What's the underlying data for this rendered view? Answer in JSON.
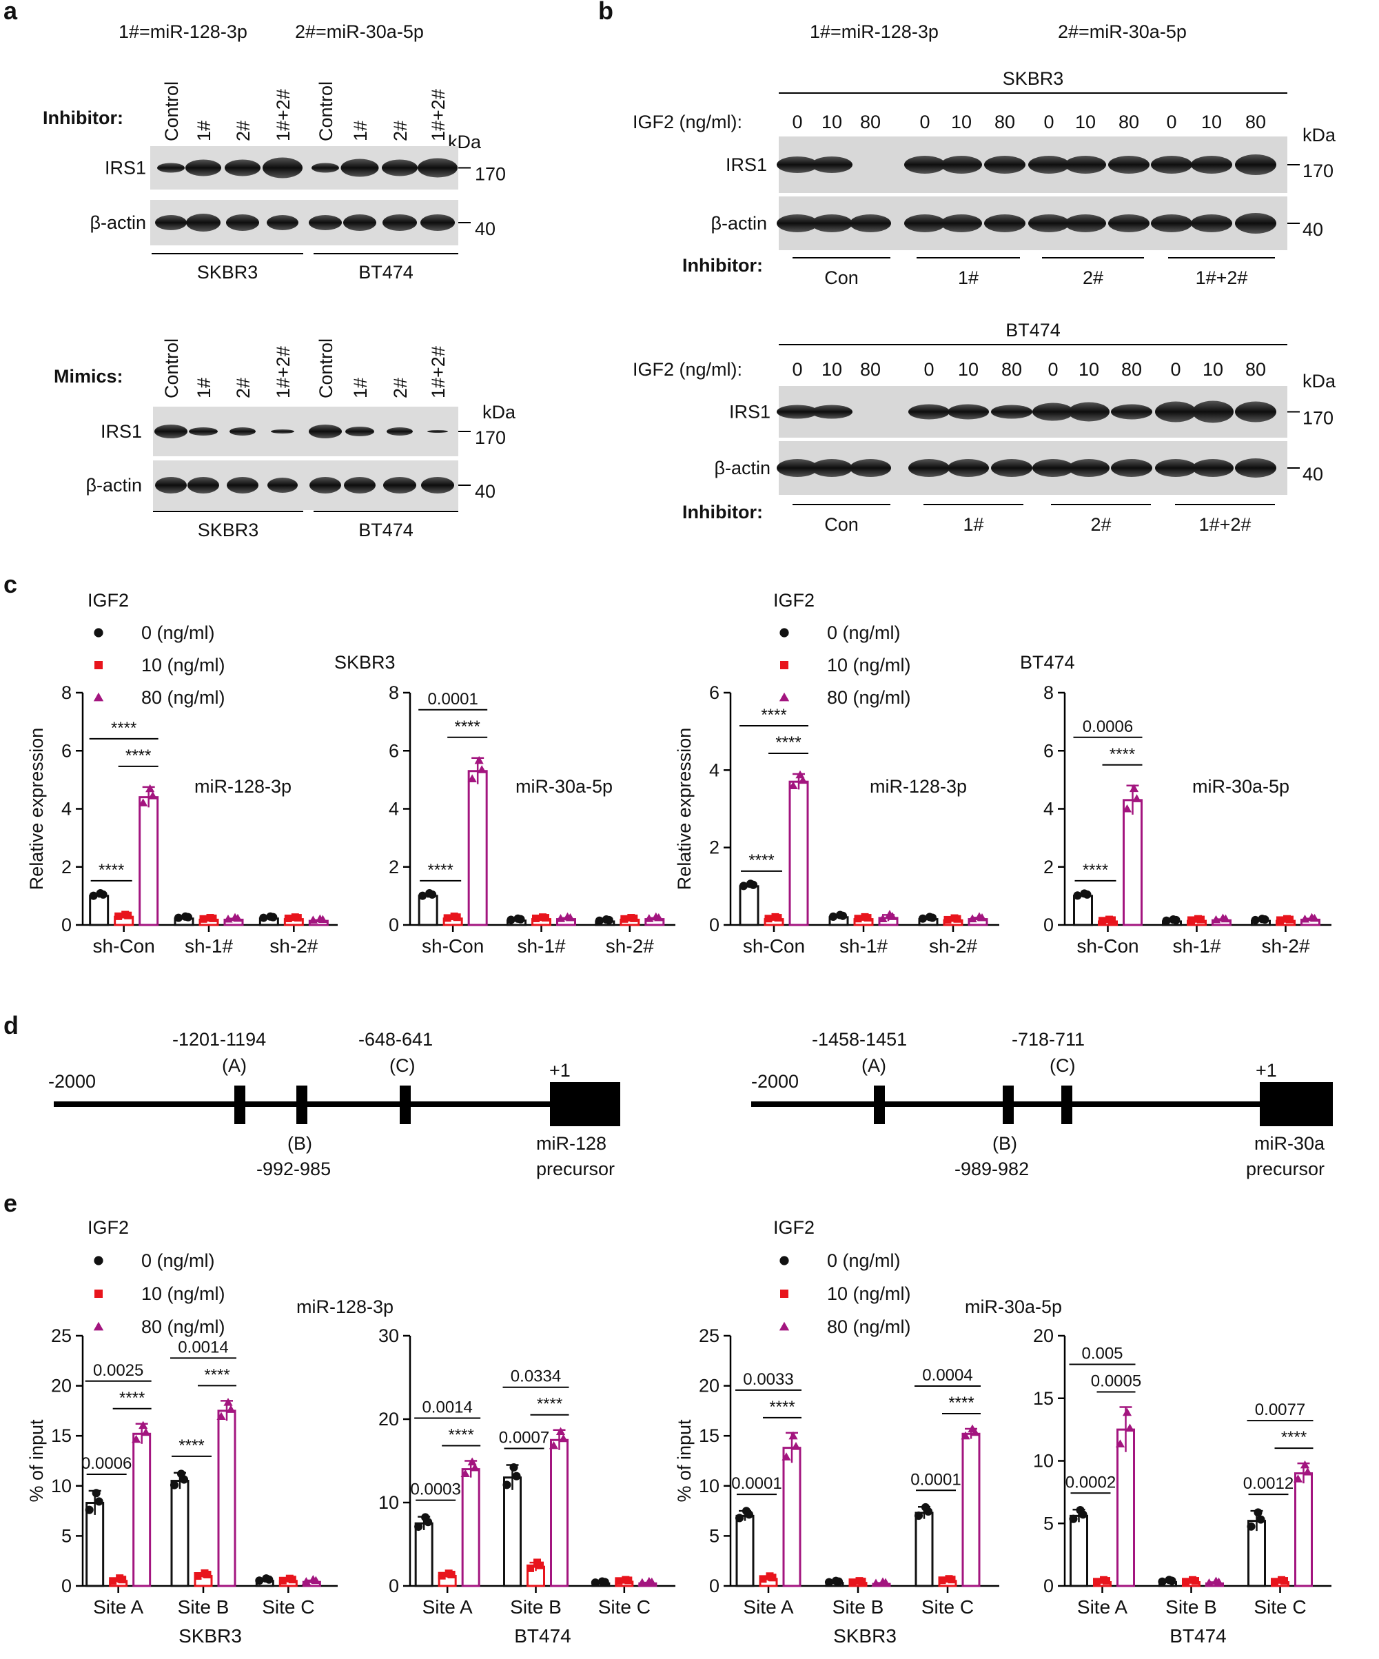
{
  "panel_a": {
    "letter": "a",
    "legend_1": "1#=miR-128-3p",
    "legend_2": "2#=miR-30a-5p",
    "kda": "kDa",
    "top": {
      "row_label": "Inhibitor:",
      "lanes": [
        "Control",
        "1#",
        "2#",
        "1#+2#",
        "Control",
        "1#",
        "2#",
        "1#+2#"
      ],
      "blots": [
        "IRS1",
        "β-actin"
      ],
      "mw": [
        "170",
        "40"
      ],
      "cells": [
        "SKBR3",
        "BT474"
      ]
    },
    "bottom": {
      "row_label": "Mimics:",
      "lanes": [
        "Control",
        "1#",
        "2#",
        "1#+2#",
        "Control",
        "1#",
        "2#",
        "1#+2#"
      ],
      "blots": [
        "IRS1",
        "β-actin"
      ],
      "mw": [
        "170",
        "40"
      ],
      "cells": [
        "SKBR3",
        "BT474"
      ]
    }
  },
  "panel_b": {
    "letter": "b",
    "legend_1": "1#=miR-128-3p",
    "legend_2": "2#=miR-30a-5p",
    "kda": "kDa",
    "igf2_label": "IGF2 (ng/ml):",
    "doses": [
      "0",
      "10",
      "80",
      "0",
      "10",
      "80",
      "0",
      "10",
      "80",
      "0",
      "10",
      "80"
    ],
    "inhibitor_label": "Inhibitor:",
    "groups": [
      "Con",
      "1#",
      "2#",
      "1#+2#"
    ],
    "blots": [
      "IRS1",
      "β-actin"
    ],
    "mw": [
      "170",
      "40"
    ],
    "top_cell": "SKBR3",
    "bottom_cell": "BT474"
  },
  "panel_c": {
    "letter": "c",
    "legend_title": "IGF2",
    "legend": [
      "0 (ng/ml)",
      "10 (ng/ml)",
      "80 (ng/ml)"
    ],
    "left_cell": "SKBR3",
    "right_cell": "BT474",
    "colors": {
      "s0": "#111111",
      "s10": "#e8141c",
      "s80": "#a3157f"
    }
  },
  "panel_d": {
    "letter": "d",
    "left": {
      "start": "-2000",
      "a_label": "-1201-1194",
      "a": "(A)",
      "b": "(B)",
      "b_label": "-992-985",
      "c_label": "-648-641",
      "c": "(C)",
      "plus1": "+1",
      "precursor_1": "miR-128",
      "precursor_2": "precursor"
    },
    "right": {
      "start": "-2000",
      "a_label": "-1458-1451",
      "a": "(A)",
      "b": "(B)",
      "b_label": "-989-982",
      "c_label": "-718-711",
      "c": "(C)",
      "plus1": "+1",
      "precursor_1": "miR-30a",
      "precursor_2": "precursor"
    }
  },
  "panel_e": {
    "letter": "e",
    "legend_title": "IGF2",
    "legend": [
      "0 (ng/ml)",
      "10 (ng/ml)",
      "80 (ng/ml)"
    ],
    "left_mirna": "miR-128-3p",
    "right_mirna": "miR-30a-5p"
  },
  "chart_data": [
    {
      "type": "bar",
      "id": "c1",
      "ylabel": "Relative expression",
      "ylim": [
        0,
        8
      ],
      "yticks": [
        "0",
        "2",
        "4",
        "6",
        "8"
      ],
      "categories": [
        "sh-Con",
        "sh-1#",
        "sh-2#"
      ],
      "series": [
        {
          "name": "0 (ng/ml)",
          "values": [
            1.0,
            0.22,
            0.22
          ]
        },
        {
          "name": "10 (ng/ml)",
          "values": [
            0.28,
            0.18,
            0.2
          ]
        },
        {
          "name": "80 (ng/ml)",
          "values": [
            4.4,
            0.18,
            0.14
          ]
        }
      ],
      "errors": [
        [
          0.06,
          0.03,
          0.03
        ],
        [
          0.04,
          0.03,
          0.03
        ],
        [
          0.35,
          0.04,
          0.03
        ]
      ],
      "annotation": "miR-128-3p",
      "sig": [
        "****",
        "****",
        "****"
      ]
    },
    {
      "type": "bar",
      "id": "c2",
      "ylabel": "",
      "ylim": [
        0,
        8
      ],
      "yticks": [
        "0",
        "2",
        "4",
        "6",
        "8"
      ],
      "categories": [
        "sh-Con",
        "sh-1#",
        "sh-2#"
      ],
      "series": [
        {
          "name": "0 (ng/ml)",
          "values": [
            1.0,
            0.15,
            0.12
          ]
        },
        {
          "name": "10 (ng/ml)",
          "values": [
            0.22,
            0.2,
            0.18
          ]
        },
        {
          "name": "80 (ng/ml)",
          "values": [
            5.3,
            0.2,
            0.2
          ]
        }
      ],
      "errors": [
        [
          0.06,
          0.03,
          0.03
        ],
        [
          0.04,
          0.03,
          0.03
        ],
        [
          0.45,
          0.04,
          0.04
        ]
      ],
      "annotation": "miR-30a-5p",
      "sig": [
        "****",
        "0.0001",
        "****"
      ]
    },
    {
      "type": "bar",
      "id": "c3",
      "ylabel": "Relative expression",
      "ylim": [
        0,
        6
      ],
      "yticks": [
        "0",
        "2",
        "4",
        "6"
      ],
      "categories": [
        "sh-Con",
        "sh-1#",
        "sh-2#"
      ],
      "series": [
        {
          "name": "0 (ng/ml)",
          "values": [
            1.0,
            0.2,
            0.15
          ]
        },
        {
          "name": "10 (ng/ml)",
          "values": [
            0.15,
            0.15,
            0.12
          ]
        },
        {
          "name": "80 (ng/ml)",
          "values": [
            3.7,
            0.18,
            0.15
          ]
        }
      ],
      "errors": [
        [
          0.04,
          0.03,
          0.03
        ],
        [
          0.03,
          0.03,
          0.03
        ],
        [
          0.2,
          0.08,
          0.04
        ]
      ],
      "annotation": "miR-128-3p",
      "sig": [
        "****",
        "****",
        "****"
      ]
    },
    {
      "type": "bar",
      "id": "c4",
      "ylabel": "",
      "ylim": [
        0,
        8
      ],
      "yticks": [
        "0",
        "2",
        "4",
        "6",
        "8"
      ],
      "categories": [
        "sh-Con",
        "sh-1#",
        "sh-2#"
      ],
      "series": [
        {
          "name": "0 (ng/ml)",
          "values": [
            1.0,
            0.12,
            0.14
          ]
        },
        {
          "name": "10 (ng/ml)",
          "values": [
            0.12,
            0.14,
            0.14
          ]
        },
        {
          "name": "80 (ng/ml)",
          "values": [
            4.3,
            0.16,
            0.18
          ]
        }
      ],
      "errors": [
        [
          0.05,
          0.03,
          0.03
        ],
        [
          0.03,
          0.03,
          0.03
        ],
        [
          0.5,
          0.04,
          0.04
        ]
      ],
      "annotation": "miR-30a-5p",
      "sig": [
        "****",
        "0.0006",
        "****"
      ]
    },
    {
      "type": "bar",
      "id": "e1",
      "ylabel": "% of input",
      "ylim": [
        0,
        25
      ],
      "yticks": [
        "0",
        "5",
        "10",
        "15",
        "20",
        "25"
      ],
      "categories": [
        "Site A",
        "Site B",
        "Site C"
      ],
      "xtitle": "SKBR3",
      "series": [
        {
          "name": "0 (ng/ml)",
          "values": [
            8.3,
            10.5,
            0.5
          ]
        },
        {
          "name": "10 (ng/ml)",
          "values": [
            0.5,
            1.0,
            0.5
          ]
        },
        {
          "name": "80 (ng/ml)",
          "values": [
            15.2,
            17.5,
            0.4
          ]
        }
      ],
      "errors": [
        [
          1.2,
          0.8,
          0.15
        ],
        [
          0.2,
          0.2,
          0.15
        ],
        [
          1.0,
          1.0,
          0.15
        ]
      ],
      "sig": [
        [
          "0.0006",
          "0.0025",
          "****"
        ],
        [
          "****",
          "0.0014",
          "****"
        ]
      ]
    },
    {
      "type": "bar",
      "id": "e2",
      "ylabel": "",
      "ylim": [
        0,
        30
      ],
      "yticks": [
        "0",
        "10",
        "20",
        "30"
      ],
      "categories": [
        "Site A",
        "Site B",
        "Site C"
      ],
      "xtitle": "BT474",
      "series": [
        {
          "name": "0 (ng/ml)",
          "values": [
            7.5,
            13.0,
            0.3
          ]
        },
        {
          "name": "10 (ng/ml)",
          "values": [
            1.2,
            2.3,
            0.5
          ]
        },
        {
          "name": "80 (ng/ml)",
          "values": [
            14.0,
            17.5,
            0.3
          ]
        }
      ],
      "errors": [
        [
          0.8,
          1.5,
          0.1
        ],
        [
          0.2,
          0.5,
          0.1
        ],
        [
          1.0,
          1.2,
          0.1
        ]
      ],
      "sig": [
        [
          "0.0003",
          "0.0014",
          "****"
        ],
        [
          "0.0007",
          "0.0334",
          "****"
        ]
      ]
    },
    {
      "type": "bar",
      "id": "e3",
      "ylabel": "% of input",
      "ylim": [
        0,
        25
      ],
      "yticks": [
        "0",
        "5",
        "10",
        "15",
        "20",
        "25"
      ],
      "categories": [
        "Site A",
        "Site B",
        "Site C"
      ],
      "xtitle": "SKBR3",
      "series": [
        {
          "name": "0 (ng/ml)",
          "values": [
            7.0,
            0.3,
            7.3
          ]
        },
        {
          "name": "10 (ng/ml)",
          "values": [
            0.7,
            0.3,
            0.5
          ]
        },
        {
          "name": "80 (ng/ml)",
          "values": [
            13.8,
            0.2,
            15.2
          ]
        }
      ],
      "errors": [
        [
          0.5,
          0.1,
          0.6
        ],
        [
          0.2,
          0.1,
          0.1
        ],
        [
          1.5,
          0.1,
          0.5
        ]
      ],
      "sig": [
        [
          "0.0001",
          "0.0033",
          "****"
        ],
        [
          "0.0001",
          "0.0004",
          "****"
        ]
      ]
    },
    {
      "type": "bar",
      "id": "e4",
      "ylabel": "",
      "ylim": [
        0,
        20
      ],
      "yticks": [
        "0",
        "5",
        "10",
        "15",
        "20"
      ],
      "categories": [
        "Site A",
        "Site B",
        "Site C"
      ],
      "xtitle": "BT474",
      "series": [
        {
          "name": "0 (ng/ml)",
          "values": [
            5.6,
            0.3,
            5.2
          ]
        },
        {
          "name": "10 (ng/ml)",
          "values": [
            0.3,
            0.3,
            0.3
          ]
        },
        {
          "name": "80 (ng/ml)",
          "values": [
            12.5,
            0.2,
            9.0
          ]
        }
      ],
      "errors": [
        [
          0.5,
          0.1,
          0.8
        ],
        [
          0.1,
          0.1,
          0.1
        ],
        [
          1.8,
          0.1,
          0.8
        ]
      ],
      "sig": [
        [
          "0.0002",
          "0.005",
          "0.0005"
        ],
        [
          "0.0012",
          "0.0077",
          "****"
        ]
      ]
    }
  ]
}
